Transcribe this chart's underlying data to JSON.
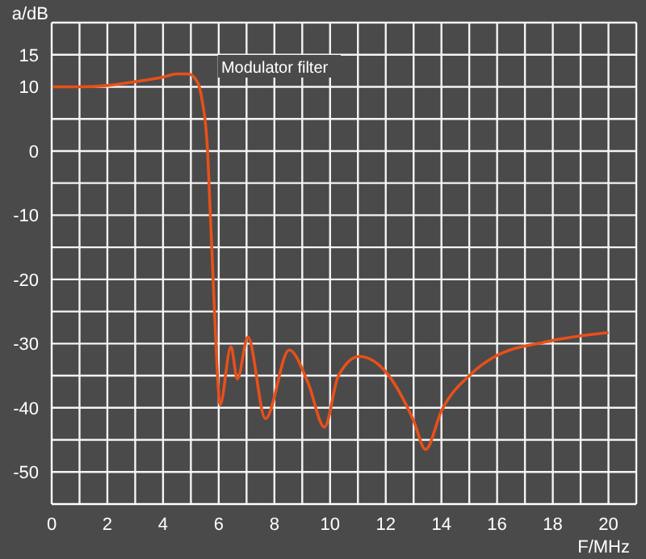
{
  "chart_data": {
    "type": "line",
    "xlabel": "F/MHz",
    "ylabel": "a/dB",
    "annotations": [
      "Modulator filter"
    ],
    "x": [
      0,
      1,
      2,
      3,
      4,
      4.5,
      4.9,
      5.2,
      5.4,
      5.6,
      5.7,
      5.8,
      5.9,
      6.05,
      6.44,
      6.67,
      7.05,
      7.68,
      8.53,
      9.2,
      9.8,
      10.3,
      11.05,
      12,
      13,
      13.43,
      14,
      15.1,
      15.85,
      17.9,
      20
    ],
    "values": [
      10,
      10,
      10.2,
      10.8,
      11.5,
      12,
      12,
      11,
      8,
      0,
      -10,
      -20,
      -30,
      -39.5,
      -30.5,
      -35.5,
      -29,
      -41.7,
      -31,
      -36,
      -43,
      -35,
      -32,
      -34.4,
      -42,
      -46.5,
      -40.5,
      -34.6,
      -32.2,
      -29.6,
      -28.3
    ],
    "color": "#e8501a",
    "xlim": [
      0,
      21
    ],
    "xticks": [
      0,
      {
        "value": 1,
        "label": null
      },
      2,
      {
        "value": 3,
        "label": null
      },
      4,
      {
        "value": 5,
        "label": null
      },
      6,
      {
        "value": 7,
        "label": null
      },
      8,
      {
        "value": 9,
        "label": null
      },
      10,
      {
        "value": 11,
        "label": null
      },
      12,
      {
        "value": 13,
        "label": null
      },
      14,
      {
        "value": 15,
        "label": null
      },
      16,
      {
        "value": 17,
        "label": null
      },
      18,
      {
        "value": 19,
        "label": null
      },
      20,
      {
        "value": 21,
        "label": null
      }
    ],
    "ylim": [
      -55,
      20
    ],
    "yticks": [
      {
        "value": -55,
        "label": null
      },
      -50,
      {
        "value": -45,
        "label": null
      },
      -40,
      {
        "value": -35,
        "label": null
      },
      -30,
      {
        "value": -25,
        "label": null
      },
      -20,
      {
        "value": -15,
        "label": null
      },
      -10,
      {
        "value": -5,
        "label": null
      },
      0,
      {
        "value": 5,
        "label": null
      },
      10,
      15,
      {
        "value": 20,
        "label": null
      }
    ],
    "grid": true,
    "marker": "none",
    "line_style": "solid"
  }
}
